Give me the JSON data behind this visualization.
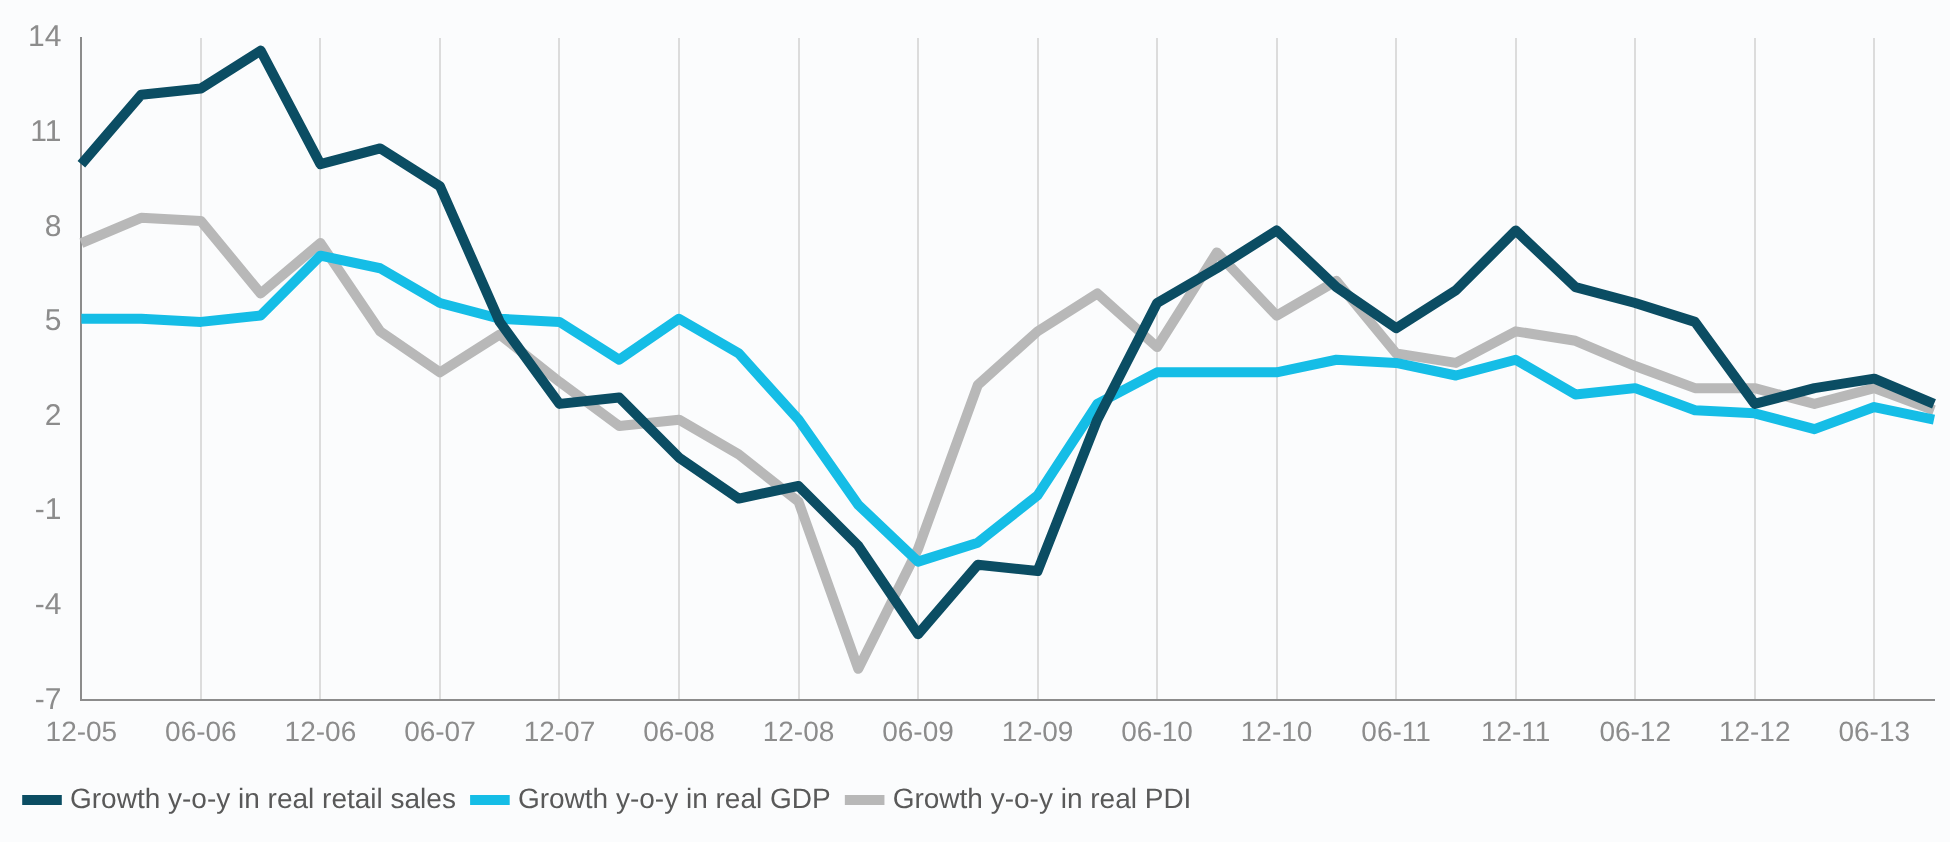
{
  "chart_data": {
    "type": "line",
    "categories": [
      "12-05",
      null,
      "06-06",
      null,
      "12-06",
      null,
      "06-07",
      null,
      "12-07",
      null,
      "06-08",
      null,
      "12-08",
      null,
      "06-09",
      null,
      "12-09",
      null,
      "06-10",
      null,
      "12-10",
      null,
      "06-11",
      null,
      "12-11",
      null,
      "06-12",
      null,
      "12-12",
      null,
      "06-13",
      null
    ],
    "series": [
      {
        "name": "Growth y-o-y in real retail sales",
        "color": "#0b4d63",
        "values": [
          10.0,
          12.2,
          12.4,
          13.6,
          10.0,
          10.5,
          9.3,
          5.0,
          2.4,
          2.6,
          0.7,
          -0.6,
          -0.2,
          -2.1,
          -4.9,
          -2.7,
          -2.9,
          1.9,
          5.6,
          6.7,
          7.9,
          6.1,
          4.8,
          6.0,
          7.9,
          6.1,
          5.6,
          5.0,
          2.4,
          2.9,
          3.2,
          2.4
        ]
      },
      {
        "name": "Growth y-o-y in real GDP",
        "color": "#15bde6",
        "values": [
          5.1,
          5.1,
          5.0,
          5.2,
          7.1,
          6.7,
          5.6,
          5.1,
          5.0,
          3.8,
          5.1,
          4.0,
          1.9,
          -0.8,
          -2.6,
          -2.0,
          -0.5,
          2.4,
          3.4,
          3.4,
          3.4,
          3.8,
          3.7,
          3.3,
          3.8,
          2.7,
          2.9,
          2.2,
          2.1,
          1.6,
          2.3,
          1.9
        ]
      },
      {
        "name": "Growth y-o-y in real PDI",
        "color": "#b8b8b8",
        "values": [
          7.5,
          8.3,
          8.2,
          5.9,
          7.5,
          4.7,
          3.4,
          4.6,
          3.1,
          1.7,
          1.9,
          0.8,
          -0.7,
          -6.0,
          -2.2,
          3.0,
          4.7,
          5.9,
          4.2,
          7.2,
          5.2,
          6.3,
          4.0,
          3.7,
          4.7,
          4.4,
          3.6,
          2.9,
          2.9,
          2.4,
          2.9,
          2.2
        ]
      }
    ],
    "ylim": [
      -7,
      14
    ],
    "yticks": [
      -7,
      -4,
      -1,
      2,
      5,
      8,
      11,
      14
    ],
    "grid": "x",
    "legend": "bottom",
    "marker": "none",
    "line_style": "solid"
  }
}
